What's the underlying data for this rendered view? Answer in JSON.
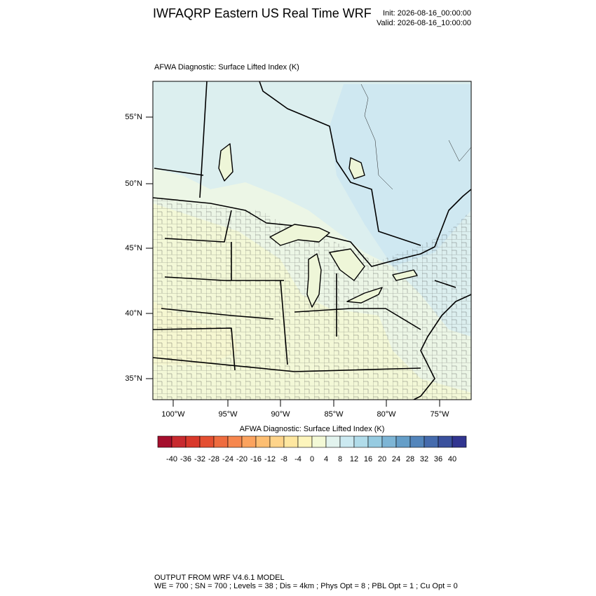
{
  "header": {
    "title": "IWFAQRP Eastern US Real Time WRF",
    "init": "Init: 2026-08-16_00:00:00",
    "valid": "Valid: 2026-08-16_10:00:00"
  },
  "map": {
    "subtitle": "AFWA Diagnostic: Surface Lifted Index   (K)",
    "lat_labels": [
      "55°N",
      "50°N",
      "45°N",
      "40°N",
      "35°N"
    ],
    "lon_labels": [
      "100°W",
      "95°W",
      "90°W",
      "85°W",
      "80°W",
      "75°W"
    ]
  },
  "colorbar": {
    "title": "AFWA Diagnostic: Surface Lifted Index  (K)",
    "levels": [
      -40,
      -36,
      -32,
      -28,
      -24,
      -20,
      -16,
      -12,
      -8,
      -4,
      0,
      4,
      8,
      12,
      16,
      20,
      24,
      28,
      32,
      36,
      40
    ],
    "colors": [
      "#a50f2d",
      "#c82a2f",
      "#d9382b",
      "#e44f31",
      "#ee6c3f",
      "#f6874e",
      "#fba35f",
      "#fdbe72",
      "#fed48a",
      "#fee7a0",
      "#fdf5bc",
      "#f3f9d6",
      "#e2f3ee",
      "#cbe9f1",
      "#b1dcea",
      "#96cbe1",
      "#7db5d5",
      "#659ec8",
      "#5385bb",
      "#456bad",
      "#3a519d",
      "#313590"
    ]
  },
  "footer": {
    "line1": "OUTPUT FROM WRF V4.6.1 MODEL",
    "line2": "WE = 700 ; SN = 700 ; Levels = 38 ; Dis = 4km ; Phys Opt = 8 ; PBL Opt = 1 ; Cu Opt = 0"
  }
}
